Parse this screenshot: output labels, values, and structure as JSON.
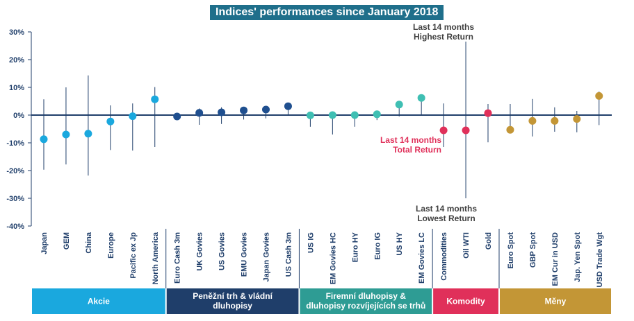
{
  "title": "Indices' performances since January 2018",
  "annotations": {
    "highest": [
      "Last 14 months",
      "Highest Return"
    ],
    "total": [
      "Last 14 months",
      "Total Return"
    ],
    "lowest": [
      "Last 14 months",
      "Lowest Return"
    ]
  },
  "colors": {
    "akcie": "#1aa8de",
    "penezni": "#1f3e6a",
    "firemni": "#2e9c94",
    "komodity": "#e0305a",
    "meny": "#c39636",
    "dot_firemni": "#3fbfb3",
    "dot_penezni": "#1f4f8f",
    "axis": "#1f3e6a",
    "whisker": "#1f3e6a"
  },
  "chart_data": {
    "type": "scatter",
    "title": "Indices' performances since January 2018",
    "ylim": [
      -40,
      30
    ],
    "yticks": [
      "30%",
      "20%",
      "10%",
      "0%",
      "-10%",
      "-20%",
      "-30%",
      "-40%"
    ],
    "ytick_values": [
      30,
      20,
      10,
      0,
      -10,
      -20,
      -30,
      -40
    ],
    "categories": [
      "Japan",
      "GEM",
      "China",
      "Europe",
      "Pacific ex Jp",
      "North America",
      "Euro Cash 3m",
      "UK Govies",
      "US Govies",
      "EMU Govies",
      "Japan Govies",
      "US Cash 3m",
      "US IG",
      "EM Govies HC",
      "Euro HY",
      "Euro IG",
      "US HY",
      "EM Govies LC",
      "Commodities",
      "Oil WTI",
      "Gold",
      "Euro Spot",
      "GBP Spot",
      "EM Cur in USD",
      "Jap. Yen Spot",
      "USD Trade Wgt"
    ],
    "group_index": [
      0,
      0,
      0,
      0,
      0,
      0,
      1,
      1,
      1,
      1,
      1,
      1,
      2,
      2,
      2,
      2,
      2,
      2,
      3,
      3,
      3,
      4,
      4,
      4,
      4,
      4
    ],
    "series": [
      {
        "name": "Total Return",
        "values": [
          -8.7,
          -7.0,
          -6.7,
          -2.3,
          -0.4,
          5.7,
          -0.5,
          0.8,
          1.0,
          1.7,
          2.0,
          3.2,
          -0.1,
          0.0,
          0.0,
          0.3,
          3.8,
          6.2,
          -5.5,
          -5.5,
          0.7,
          -5.3,
          -2.1,
          -2.1,
          -1.4,
          6.9
        ]
      },
      {
        "name": "Highest Return",
        "values": [
          5.7,
          10.0,
          14.3,
          3.5,
          4.2,
          10.1,
          0.5,
          2.4,
          2.8,
          2.8,
          2.3,
          3.7,
          0.8,
          0.5,
          0.5,
          0.8,
          5.0,
          6.5,
          4.2,
          26.5,
          4.0,
          4.0,
          5.8,
          2.8,
          1.5,
          8.5
        ]
      },
      {
        "name": "Lowest Return",
        "values": [
          -19.7,
          -17.8,
          -21.8,
          -12.6,
          -12.8,
          -11.5,
          -0.8,
          -3.5,
          -3.2,
          -1.6,
          -1.2,
          -0.2,
          -4.2,
          -7.0,
          -4.2,
          -1.8,
          -0.5,
          -0.2,
          -11.5,
          -30.0,
          -9.8,
          -6.0,
          -7.7,
          -6.0,
          -6.2,
          -3.6
        ]
      }
    ],
    "groups": [
      {
        "label": "Akcie"
      },
      {
        "label": "Peněžní trh & vládní dluhopisy"
      },
      {
        "label": "Firemní dluhopisy & dluhopisy rozvíjejících se trhů"
      },
      {
        "label": "Komodity"
      },
      {
        "label": "Měny"
      }
    ],
    "grid": false,
    "legend": "none"
  }
}
